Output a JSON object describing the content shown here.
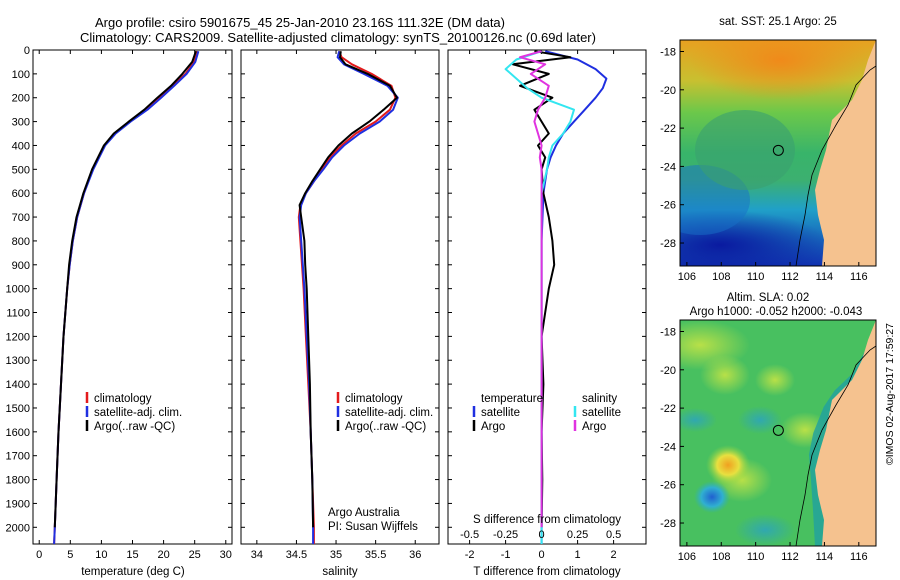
{
  "header": {
    "line1": "Argo profile: csiro 5901675_45 25-Jan-2010 23.16S 111.32E (DM data)",
    "line2": "Climatology: CARS2009. Satellite-adjusted climatology: synTS_20100126.nc (0.69d later)"
  },
  "colors": {
    "climatology": "#e31a1c",
    "satellite": "#1f2fe0",
    "argo": "#000000",
    "sal_sat": "#33e6f0",
    "sal_argo": "#e033e0",
    "land": "#f5c28f"
  },
  "chart_data": [
    {
      "type": "line",
      "name": "temperature-profile",
      "xlabel": "temperature (deg C)",
      "ylabel": "",
      "xlim": [
        -1,
        31
      ],
      "ylim": [
        2070,
        0
      ],
      "xticks": [
        "0",
        "5",
        "10",
        "15",
        "20",
        "25",
        "30"
      ],
      "xtick_values": [
        0,
        5,
        10,
        15,
        20,
        25,
        30
      ],
      "yticks": [
        "0",
        "100",
        "200",
        "300",
        "400",
        "500",
        "600",
        "700",
        "800",
        "900",
        "1000",
        "1100",
        "1200",
        "1300",
        "1400",
        "1500",
        "1600",
        "1700",
        "1800",
        "1900",
        "2000"
      ],
      "ytick_values": [
        0,
        100,
        200,
        300,
        400,
        500,
        600,
        700,
        800,
        900,
        1000,
        1100,
        1200,
        1300,
        1400,
        1500,
        1600,
        1700,
        1800,
        1900,
        2000
      ],
      "legend": [
        "climatology",
        "satellite-adj. clim.",
        "Argo(..raw -QC)"
      ],
      "series": [
        {
          "name": "climatology",
          "color_key": "climatology",
          "depth": [
            5,
            50,
            100,
            150,
            200,
            250,
            300,
            350,
            400,
            500,
            600,
            700,
            800,
            900,
            1000,
            1200,
            1400,
            1600,
            1800,
            2000,
            2070
          ],
          "values": [
            25.4,
            24.9,
            23.5,
            21.5,
            19.4,
            17.2,
            14.6,
            12.2,
            10.5,
            8.6,
            7.2,
            6.1,
            5.4,
            4.9,
            4.5,
            3.9,
            3.5,
            3.1,
            2.8,
            2.5,
            2.4
          ]
        },
        {
          "name": "satellite-adj. clim.",
          "color_key": "satellite",
          "depth": [
            5,
            50,
            100,
            150,
            200,
            250,
            300,
            350,
            400,
            500,
            600,
            700,
            800,
            900,
            1000,
            1200,
            1400,
            1600,
            1800,
            2000,
            2070
          ],
          "values": [
            25.6,
            25.1,
            23.7,
            21.7,
            19.6,
            17.4,
            14.7,
            12.3,
            10.6,
            8.7,
            7.2,
            6.1,
            5.4,
            4.9,
            4.5,
            3.9,
            3.5,
            3.1,
            2.8,
            2.5,
            2.4
          ]
        },
        {
          "name": "Argo(..raw -QC)",
          "color_key": "argo",
          "depth": [
            5,
            50,
            100,
            150,
            200,
            250,
            300,
            350,
            400,
            500,
            600,
            700,
            800,
            900,
            1000,
            1200,
            1400,
            1600,
            1800,
            2000
          ],
          "values": [
            25.2,
            24.6,
            23.0,
            21.2,
            19.0,
            16.9,
            14.4,
            12.0,
            10.4,
            8.5,
            7.1,
            6.0,
            5.3,
            4.8,
            4.5,
            3.9,
            3.5,
            3.1,
            2.8,
            2.5
          ]
        }
      ]
    },
    {
      "type": "line",
      "name": "salinity-profile",
      "xlabel": "salinity",
      "xlim": [
        33.8,
        36.3
      ],
      "ylim": [
        2070,
        0
      ],
      "xticks": [
        "34",
        "34.5",
        "35",
        "35.5",
        "36"
      ],
      "xtick_values": [
        34,
        34.5,
        35,
        35.5,
        36
      ],
      "legend": [
        "climatology",
        "satellite-adj. clim.",
        "Argo(..raw -QC)"
      ],
      "annotation": [
        "Argo Australia",
        "PI: Susan Wijffels"
      ],
      "series": [
        {
          "name": "climatology",
          "color_key": "climatology",
          "depth": [
            5,
            30,
            60,
            100,
            150,
            200,
            250,
            300,
            350,
            400,
            450,
            500,
            550,
            600,
            650,
            700,
            800,
            900,
            1000,
            1200,
            1400,
            1600,
            1800,
            2000,
            2070
          ],
          "values": [
            35.04,
            35.07,
            35.2,
            35.45,
            35.7,
            35.75,
            35.68,
            35.5,
            35.25,
            35.07,
            34.92,
            34.82,
            34.72,
            34.62,
            34.55,
            34.53,
            34.55,
            34.57,
            34.59,
            34.62,
            34.65,
            34.68,
            34.7,
            34.72,
            34.72
          ]
        },
        {
          "name": "satellite-adj. clim.",
          "color_key": "satellite",
          "depth": [
            5,
            30,
            60,
            100,
            150,
            200,
            250,
            300,
            350,
            400,
            450,
            500,
            550,
            600,
            650,
            700,
            800,
            900,
            1000,
            1200,
            1400,
            1600,
            1800,
            2000,
            2070
          ],
          "values": [
            35.04,
            35.02,
            35.1,
            35.35,
            35.65,
            35.78,
            35.72,
            35.55,
            35.3,
            35.1,
            34.95,
            34.84,
            34.72,
            34.62,
            34.56,
            34.54,
            34.56,
            34.58,
            34.6,
            34.63,
            34.66,
            34.68,
            34.7,
            34.71,
            34.71
          ]
        },
        {
          "name": "Argo(..raw -QC)",
          "color_key": "argo",
          "depth": [
            5,
            30,
            60,
            100,
            150,
            200,
            250,
            300,
            350,
            400,
            450,
            500,
            550,
            600,
            650,
            700,
            800,
            900,
            1000,
            1200,
            1400,
            1600,
            1800,
            2000
          ],
          "values": [
            35.06,
            35.05,
            35.12,
            35.4,
            35.68,
            35.77,
            35.6,
            35.42,
            35.2,
            35.03,
            34.9,
            34.8,
            34.7,
            34.61,
            34.54,
            34.56,
            34.6,
            34.61,
            34.63,
            34.65,
            34.67,
            34.68,
            34.7,
            34.71
          ]
        }
      ]
    },
    {
      "type": "line",
      "name": "difference-profile",
      "xlabel": "T difference from climatology",
      "xlabel_top": "S difference from climatology",
      "xlim": [
        -2.6,
        2.9
      ],
      "ylim": [
        2070,
        0
      ],
      "xticks": [
        "-2",
        "-1",
        "0",
        "1",
        "2"
      ],
      "xtick_values": [
        -2,
        -1,
        0,
        1,
        2
      ],
      "sticks": [
        "-0.5",
        "-0.25",
        "0",
        "0.25",
        "0.5"
      ],
      "stick_values": [
        -2,
        -1,
        0,
        1,
        2
      ],
      "legend_t": [
        "temperature",
        "satellite",
        "Argo"
      ],
      "legend_s": [
        "salinity",
        "satellite",
        "Argo"
      ],
      "series": [
        {
          "name": "T satellite",
          "color_key": "satellite",
          "depth": [
            5,
            40,
            80,
            120,
            160,
            200,
            250,
            300,
            350,
            400,
            450,
            500,
            600,
            800,
            1000,
            1500,
            2000,
            2070
          ],
          "values": [
            0.1,
            1.0,
            1.5,
            1.8,
            1.7,
            1.5,
            1.2,
            0.9,
            0.6,
            0.4,
            0.25,
            0.15,
            0.05,
            0.0,
            0.0,
            0.0,
            0.0,
            0.0
          ]
        },
        {
          "name": "T Argo",
          "color_key": "argo",
          "depth": [
            5,
            30,
            60,
            100,
            150,
            200,
            250,
            300,
            350,
            400,
            450,
            500,
            600,
            700,
            800,
            900,
            1000,
            1100,
            1200,
            1400,
            1600,
            1800,
            2000
          ],
          "values": [
            -0.2,
            0.8,
            -0.8,
            0.2,
            -0.6,
            0.3,
            -0.2,
            0.0,
            0.2,
            -0.1,
            0.1,
            0.0,
            0.05,
            0.2,
            0.3,
            0.35,
            0.2,
            0.1,
            0.0,
            0.05,
            0.0,
            0.02,
            0.0
          ]
        },
        {
          "name": "S satellite",
          "color_key": "sal_sat",
          "depth": [
            5,
            40,
            80,
            120,
            160,
            200,
            250,
            300,
            350,
            400,
            450,
            500,
            600,
            800,
            1000,
            1500,
            2000,
            2070
          ],
          "values": [
            0.0,
            -0.7,
            -1.0,
            -0.7,
            -0.4,
            0.0,
            0.9,
            0.8,
            0.6,
            0.3,
            0.2,
            0.15,
            0.0,
            0.0,
            0.0,
            0.0,
            0.0,
            0.0
          ]
        },
        {
          "name": "S Argo",
          "color_key": "sal_argo",
          "depth": [
            5,
            30,
            60,
            100,
            150,
            200,
            250,
            300,
            350,
            400,
            450,
            500,
            600,
            800,
            1000,
            1500,
            2000
          ],
          "values": [
            0.0,
            -0.6,
            0.1,
            -0.3,
            0.2,
            0.1,
            -0.1,
            -0.2,
            -0.1,
            0.0,
            -0.05,
            0.0,
            0.0,
            0.0,
            0.0,
            0.0,
            0.0
          ]
        }
      ]
    },
    {
      "type": "heatmap",
      "name": "sst-map",
      "title": "sat. SST: 25.1  Argo: 25",
      "xticks": [
        "106",
        "108",
        "110",
        "112",
        "114",
        "116"
      ],
      "xtick_values": [
        106,
        108,
        110,
        112,
        114,
        116
      ],
      "yticks": [
        "-18",
        "-20",
        "-22",
        "-24",
        "-26",
        "-28"
      ],
      "ytick_values": [
        -18,
        -20,
        -22,
        -24,
        -26,
        -28
      ],
      "xlim": [
        105.6,
        117
      ],
      "ylim": [
        -29.2,
        -17.4
      ],
      "marker": [
        111.32,
        -23.16
      ]
    },
    {
      "type": "heatmap",
      "name": "sla-map",
      "title": "Altim. SLA: 0.02",
      "subtitle": "Argo h1000: -0.052  h2000: -0.043",
      "xticks": [
        "106",
        "108",
        "110",
        "112",
        "114",
        "116"
      ],
      "xtick_values": [
        106,
        108,
        110,
        112,
        114,
        116
      ],
      "yticks": [
        "-18",
        "-20",
        "-22",
        "-24",
        "-26",
        "-28"
      ],
      "ytick_values": [
        -18,
        -20,
        -22,
        -24,
        -26,
        -28
      ],
      "xlim": [
        105.6,
        117
      ],
      "ylim": [
        -29.2,
        -17.4
      ],
      "marker": [
        111.32,
        -23.16
      ]
    }
  ],
  "credit": "©IMOS 02-Aug-2017 17:59:27"
}
